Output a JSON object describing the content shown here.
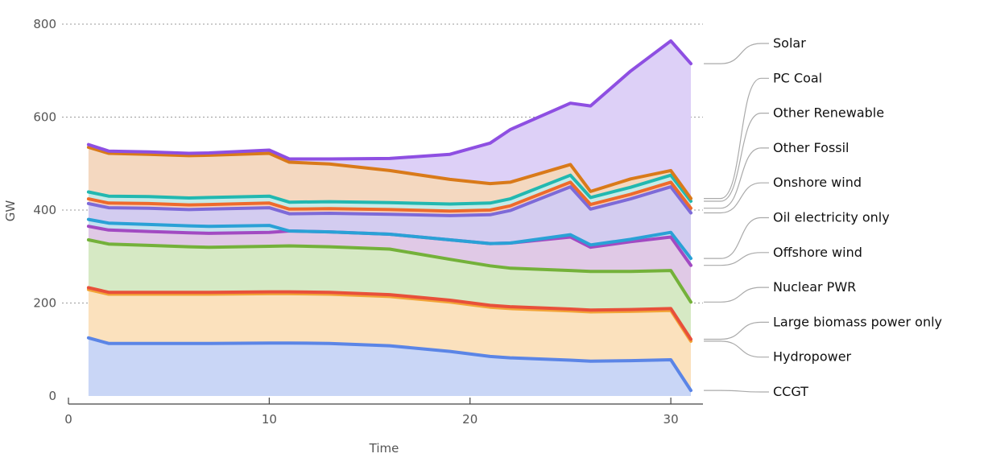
{
  "chart_data": {
    "type": "area",
    "stacked": true,
    "xlabel": "Time",
    "ylabel": "GW",
    "xlim": [
      0,
      31.6
    ],
    "ylim": [
      0,
      800
    ],
    "x_ticks": [
      0,
      10,
      20,
      30
    ],
    "y_ticks": [
      0,
      200,
      400,
      600,
      800
    ],
    "grid": "horizontal dotted",
    "legend": "right, labels with leader lines",
    "x": [
      1,
      2,
      4,
      6,
      7,
      10,
      11,
      13,
      16,
      19,
      21,
      22,
      25,
      26,
      28,
      30,
      31
    ],
    "series": [
      {
        "name": "CCGT",
        "color": "#5b85e6",
        "fill": "#c9d6f6",
        "values": [
          125,
          113,
          113,
          113,
          113,
          114,
          114,
          113,
          108,
          96,
          85,
          82,
          77,
          75,
          76,
          78,
          12
        ]
      },
      {
        "name": "Hydropower",
        "color": "#f2a438",
        "fill": "#fbe1bd",
        "values": [
          104,
          106,
          106,
          106,
          106,
          106,
          106,
          106,
          106,
          106,
          106,
          106,
          106,
          106,
          106,
          106,
          106
        ]
      },
      {
        "name": "Large biomass power only",
        "color": "#e8503a",
        "fill": "#f8cfc4",
        "values": [
          4,
          4,
          4,
          4,
          4,
          4,
          4,
          4,
          4,
          4,
          4,
          4,
          4,
          4,
          4,
          4,
          4
        ]
      },
      {
        "name": "Nuclear PWR",
        "color": "#74b13a",
        "fill": "#d6e9c4",
        "values": [
          103,
          104,
          101,
          98,
          97,
          98,
          99,
          98,
          98,
          88,
          85,
          83,
          83,
          83,
          82,
          82,
          80
        ]
      },
      {
        "name": "Offshore wind",
        "color": "#a24ac2",
        "fill": "#e0c9e6",
        "values": [
          29,
          30,
          30,
          30,
          30,
          30,
          32,
          32,
          32,
          42,
          48,
          54,
          72,
          52,
          64,
          72,
          79
        ]
      },
      {
        "name": "Oil electricity only",
        "color": "#2aa1d6",
        "fill": "#c4e0f0",
        "values": [
          15,
          15,
          15,
          15,
          15,
          15,
          0,
          0,
          0,
          0,
          0,
          0,
          5,
          5,
          5,
          10,
          15
        ]
      },
      {
        "name": "Onshore wind",
        "color": "#7d6ad8",
        "fill": "#d3ccf0",
        "values": [
          34,
          33,
          35,
          35,
          37,
          38,
          37,
          40,
          43,
          52,
          62,
          70,
          103,
          77,
          87,
          98,
          98
        ]
      },
      {
        "name": "Other Fossil",
        "color": "#ee6a2c",
        "fill": "#f7d3bf",
        "values": [
          10,
          10,
          10,
          10,
          10,
          10,
          10,
          10,
          10,
          10,
          10,
          10,
          10,
          10,
          10,
          10,
          10
        ]
      },
      {
        "name": "Other Renewable",
        "color": "#22b8b0",
        "fill": "#c6ebe8",
        "values": [
          15,
          15,
          15,
          15,
          15,
          15,
          15,
          15,
          15,
          15,
          15,
          15,
          15,
          15,
          15,
          15,
          15
        ]
      },
      {
        "name": "PC Coal",
        "color": "#d97a1a",
        "fill": "#f4d8c0",
        "values": [
          96,
          92,
          91,
          91,
          91,
          92,
          86,
          81,
          69,
          53,
          42,
          36,
          23,
          13,
          18,
          10,
          6
        ]
      },
      {
        "name": "Solar",
        "color": "#8e4fe2",
        "fill": "#ddd0f7",
        "values": [
          6,
          5,
          5,
          5,
          5,
          7,
          7,
          11,
          26,
          54,
          87,
          113,
          132,
          184,
          232,
          279,
          290
        ]
      }
    ]
  }
}
